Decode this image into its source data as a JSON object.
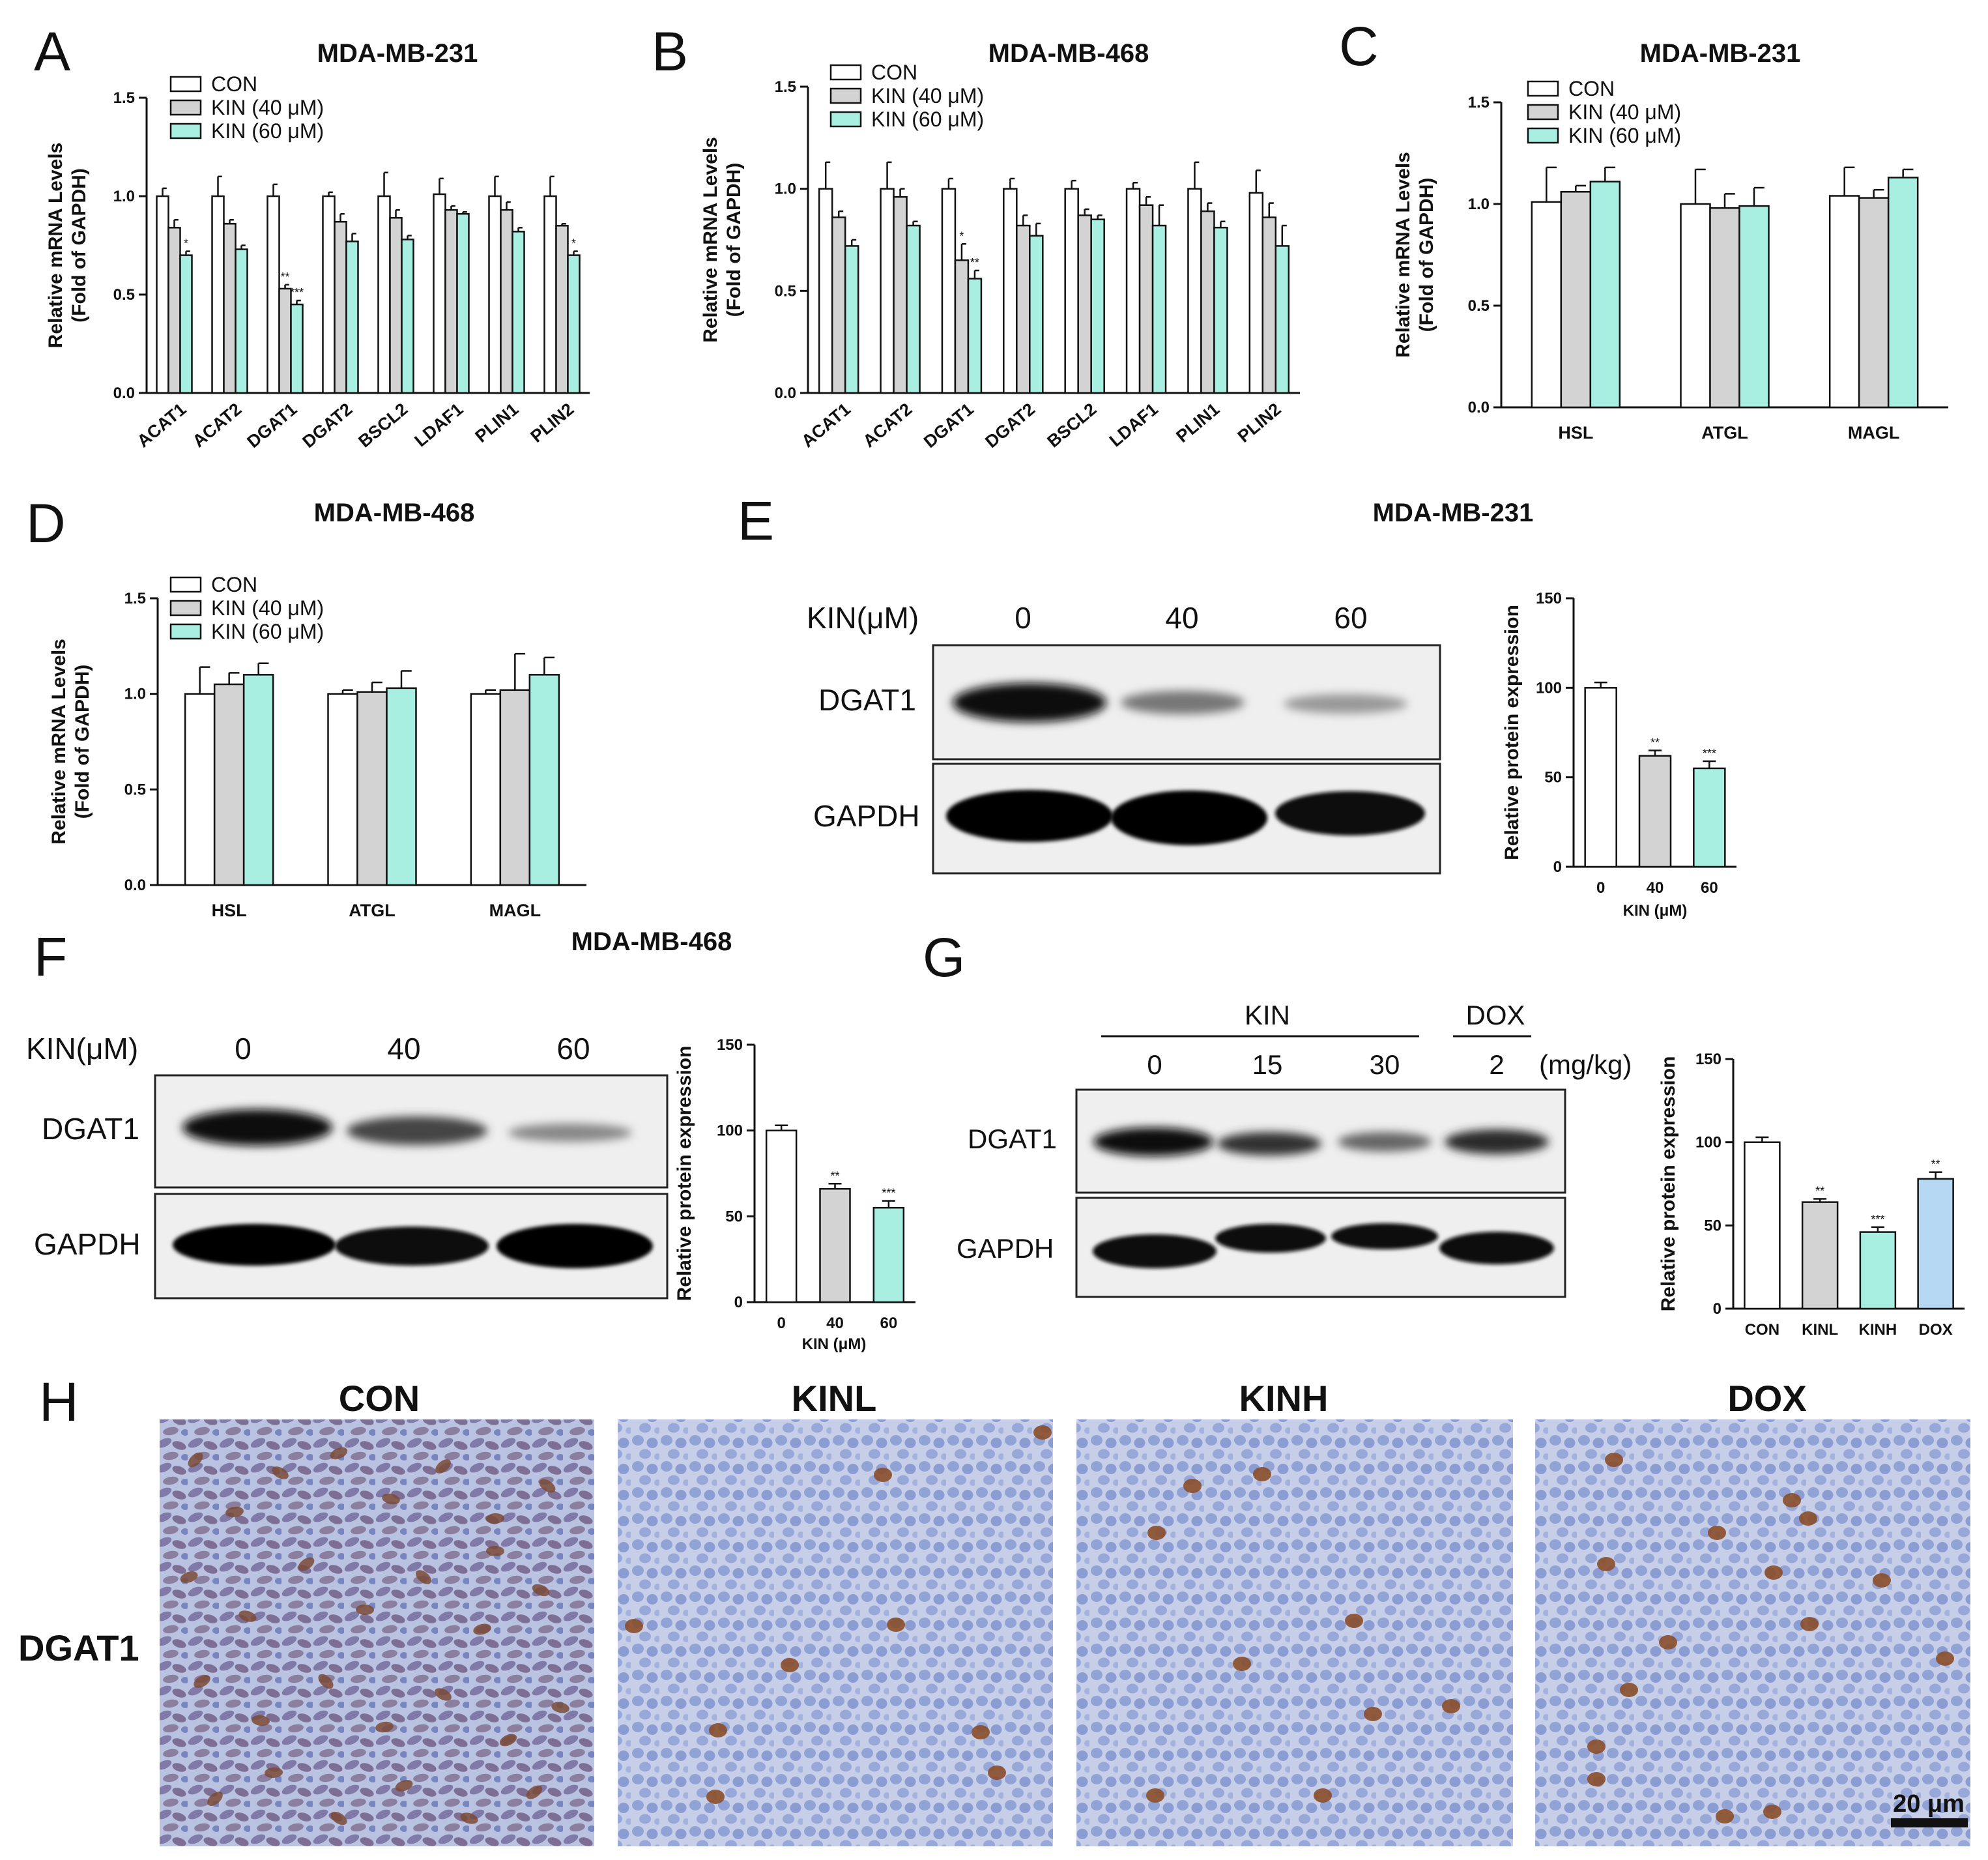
{
  "panel_letters": {
    "A": "A",
    "B": "B",
    "C": "C",
    "D": "D",
    "E": "E",
    "F": "F",
    "G": "G",
    "H": "H"
  },
  "legend_labels": [
    "CON",
    "KIN (40 μM)",
    "KIN (60 μM)"
  ],
  "mrna_ylabel": [
    "Relative mRNA Levels",
    "(Fold of GAPDH)"
  ],
  "protein_ylabel": "Relative protein expression",
  "colors": {
    "con": "#ffffff",
    "kin40": "#d3d3d3",
    "kin60": "#a8efe2",
    "dox": "#b6d8f2",
    "axis": "#111111",
    "ihc_bg": "#c9d1ea",
    "nucleus": "#8d9fd4",
    "brown": "#8a4e2a"
  },
  "chart_data": [
    {
      "id": "A",
      "type": "bar",
      "title": "MDA-MB-231",
      "ylabel": "Relative mRNA Levels (Fold of GAPDH)",
      "ylim": [
        0,
        1.5
      ],
      "yticks": [
        "0.0",
        "0.5",
        "1.0",
        "1.5"
      ],
      "categories": [
        "ACAT1",
        "ACAT2",
        "DGAT1",
        "DGAT2",
        "BSCL2",
        "LDAF1",
        "PLIN1",
        "PLIN2"
      ],
      "series": [
        {
          "name": "CON",
          "values": [
            1.0,
            1.0,
            1.0,
            1.0,
            1.0,
            1.01,
            1.0,
            1.0
          ],
          "errors": [
            0.04,
            0.1,
            0.06,
            0.02,
            0.12,
            0.08,
            0.1,
            0.1
          ]
        },
        {
          "name": "KIN (40 μM)",
          "values": [
            0.84,
            0.86,
            0.53,
            0.87,
            0.89,
            0.93,
            0.93,
            0.85
          ],
          "errors": [
            0.04,
            0.02,
            0.02,
            0.04,
            0.04,
            0.02,
            0.04,
            0.01
          ]
        },
        {
          "name": "KIN (60 μM)",
          "values": [
            0.7,
            0.73,
            0.45,
            0.77,
            0.78,
            0.91,
            0.82,
            0.7
          ],
          "errors": [
            0.02,
            0.02,
            0.02,
            0.04,
            0.02,
            0.01,
            0.02,
            0.02
          ]
        }
      ],
      "significance": [
        {
          "category": "ACAT1",
          "series": 2,
          "label": "*"
        },
        {
          "category": "DGAT1",
          "series": 1,
          "label": "**"
        },
        {
          "category": "DGAT1",
          "series": 2,
          "label": "***"
        },
        {
          "category": "PLIN2",
          "series": 2,
          "label": "*"
        }
      ]
    },
    {
      "id": "B",
      "type": "bar",
      "title": "MDA-MB-468",
      "ylabel": "Relative mRNA Levels (Fold of GAPDH)",
      "ylim": [
        0,
        1.5
      ],
      "yticks": [
        "0.0",
        "0.5",
        "1.0",
        "1.5"
      ],
      "categories": [
        "ACAT1",
        "ACAT2",
        "DGAT1",
        "DGAT2",
        "BSCL2",
        "LDAF1",
        "PLIN1",
        "PLIN2"
      ],
      "series": [
        {
          "name": "CON",
          "values": [
            1.0,
            1.0,
            1.0,
            1.0,
            1.0,
            1.0,
            1.0,
            0.98
          ],
          "errors": [
            0.13,
            0.13,
            0.05,
            0.05,
            0.04,
            0.03,
            0.13,
            0.11
          ]
        },
        {
          "name": "KIN (40 μM)",
          "values": [
            0.86,
            0.96,
            0.65,
            0.82,
            0.87,
            0.92,
            0.89,
            0.86
          ],
          "errors": [
            0.03,
            0.04,
            0.08,
            0.05,
            0.03,
            0.04,
            0.04,
            0.07
          ]
        },
        {
          "name": "KIN (60 μM)",
          "values": [
            0.72,
            0.82,
            0.56,
            0.77,
            0.85,
            0.82,
            0.81,
            0.72
          ],
          "errors": [
            0.03,
            0.02,
            0.04,
            0.06,
            0.02,
            0.1,
            0.03,
            0.1
          ]
        }
      ],
      "significance": [
        {
          "category": "DGAT1",
          "series": 1,
          "label": "*"
        },
        {
          "category": "DGAT1",
          "series": 2,
          "label": "**"
        }
      ]
    },
    {
      "id": "C",
      "type": "bar",
      "title": "MDA-MB-231",
      "ylabel": "Relative mRNA Levels (Fold of GAPDH)",
      "ylim": [
        0,
        1.5
      ],
      "yticks": [
        "0.0",
        "0.5",
        "1.0",
        "1.5"
      ],
      "categories": [
        "HSL",
        "ATGL",
        "MAGL"
      ],
      "series": [
        {
          "name": "CON",
          "values": [
            1.01,
            1.0,
            1.04
          ],
          "errors": [
            0.17,
            0.17,
            0.14
          ]
        },
        {
          "name": "KIN (40 μM)",
          "values": [
            1.06,
            0.98,
            1.03
          ],
          "errors": [
            0.03,
            0.07,
            0.04
          ]
        },
        {
          "name": "KIN (60 μM)",
          "values": [
            1.11,
            0.99,
            1.13
          ],
          "errors": [
            0.07,
            0.09,
            0.04
          ]
        }
      ],
      "significance": []
    },
    {
      "id": "D",
      "type": "bar",
      "title": "MDA-MB-468",
      "ylabel": "Relative mRNA Levels (Fold of GAPDH)",
      "ylim": [
        0,
        1.5
      ],
      "yticks": [
        "0.0",
        "0.5",
        "1.0",
        "1.5"
      ],
      "categories": [
        "HSL",
        "ATGL",
        "MAGL"
      ],
      "series": [
        {
          "name": "CON",
          "values": [
            1.0,
            1.0,
            1.0
          ],
          "errors": [
            0.14,
            0.02,
            0.02
          ]
        },
        {
          "name": "KIN (40 μM)",
          "values": [
            1.05,
            1.01,
            1.02
          ],
          "errors": [
            0.06,
            0.05,
            0.19
          ]
        },
        {
          "name": "KIN (60 μM)",
          "values": [
            1.1,
            1.03,
            1.1
          ],
          "errors": [
            0.06,
            0.09,
            0.09
          ]
        }
      ],
      "significance": []
    },
    {
      "id": "E",
      "type": "bar",
      "title": "MDA-MB-231",
      "xlabel": "KIN (μM)",
      "ylabel": "Relative protein expression",
      "ylim": [
        0,
        150
      ],
      "yticks": [
        "0",
        "50",
        "100",
        "150"
      ],
      "categories": [
        "0",
        "40",
        "60"
      ],
      "values": [
        100,
        62,
        55
      ],
      "errors": [
        3,
        3,
        4
      ],
      "significance": [
        "",
        "**",
        "***"
      ]
    },
    {
      "id": "F",
      "type": "bar",
      "title": "MDA-MB-468",
      "xlabel": "KIN (μM)",
      "ylabel": "Relative protein expression",
      "ylim": [
        0,
        150
      ],
      "yticks": [
        "0",
        "50",
        "100",
        "150"
      ],
      "categories": [
        "0",
        "40",
        "60"
      ],
      "values": [
        100,
        66,
        55
      ],
      "errors": [
        3,
        3,
        4
      ],
      "significance": [
        "",
        "**",
        "***"
      ]
    },
    {
      "id": "G",
      "type": "bar",
      "ylabel": "Relative protein expression",
      "ylim": [
        0,
        150
      ],
      "yticks": [
        "0",
        "50",
        "100",
        "150"
      ],
      "categories": [
        "CON",
        "KINL",
        "KINH",
        "DOX"
      ],
      "values": [
        100,
        64,
        46,
        78
      ],
      "errors": [
        3,
        2,
        3,
        4
      ],
      "significance": [
        "",
        "**",
        "***",
        "**"
      ]
    }
  ],
  "blot_E": {
    "title": "MDA-MB-231",
    "treatment_label": "KIN(μM)",
    "doses": [
      "0",
      "40",
      "60"
    ],
    "rows": [
      "DGAT1",
      "GAPDH"
    ]
  },
  "blot_F": {
    "title": "MDA-MB-468",
    "treatment_label": "KIN(μM)",
    "doses": [
      "0",
      "40",
      "60"
    ],
    "rows": [
      "DGAT1",
      "GAPDH"
    ]
  },
  "blot_G": {
    "group_kin": "KIN",
    "group_dox": "DOX",
    "doses": [
      "0",
      "15",
      "30",
      "2"
    ],
    "unit": "(mg/kg)",
    "rows": [
      "DGAT1",
      "GAPDH"
    ]
  },
  "ihc": {
    "row_label": "DGAT1",
    "panels": [
      "CON",
      "KINL",
      "KINH",
      "DOX"
    ],
    "scale_bar": "20 μm"
  }
}
